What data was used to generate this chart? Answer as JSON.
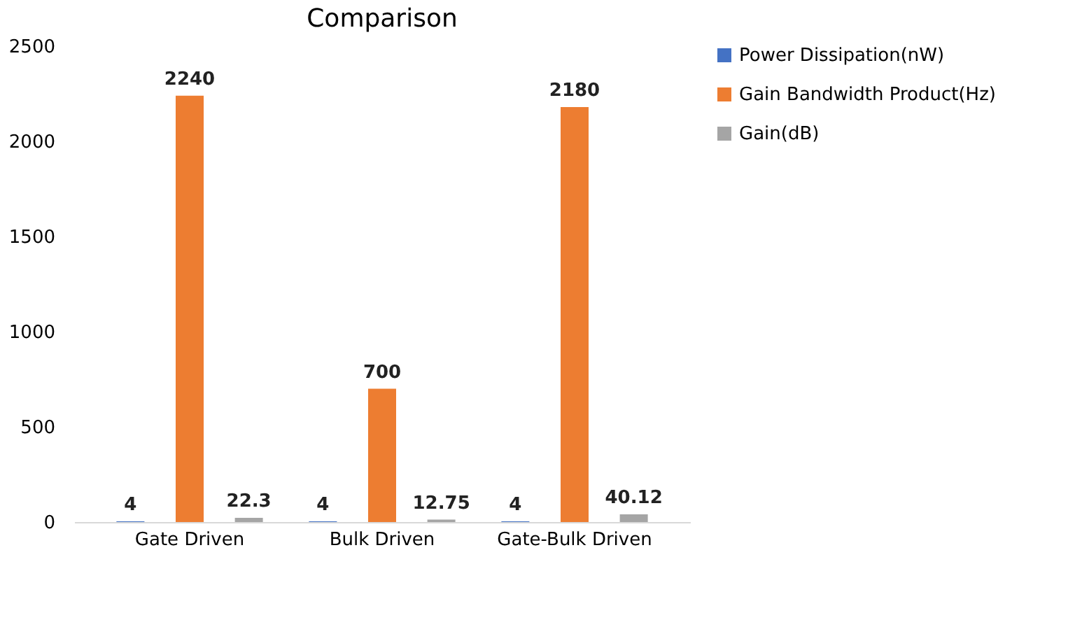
{
  "chart_data": {
    "type": "bar",
    "title": "Comparison",
    "categories": [
      "Gate Driven",
      "Bulk Driven",
      "Gate-Bulk Driven"
    ],
    "series": [
      {
        "name": "Power Dissipation(nW)",
        "color": "#4472c4",
        "values": [
          4,
          4,
          4
        ]
      },
      {
        "name": "Gain Bandwidth Product(Hz)",
        "color": "#ed7d31",
        "values": [
          2240,
          700,
          2180
        ]
      },
      {
        "name": "Gain(dB)",
        "color": "#a5a5a5",
        "values": [
          22.3,
          12.75,
          40.12
        ]
      }
    ],
    "ylim": [
      0,
      2500
    ],
    "yticks": [
      0,
      500,
      1000,
      1500,
      2000,
      2500
    ],
    "data_labels": true,
    "grid": false,
    "legend": "right"
  }
}
